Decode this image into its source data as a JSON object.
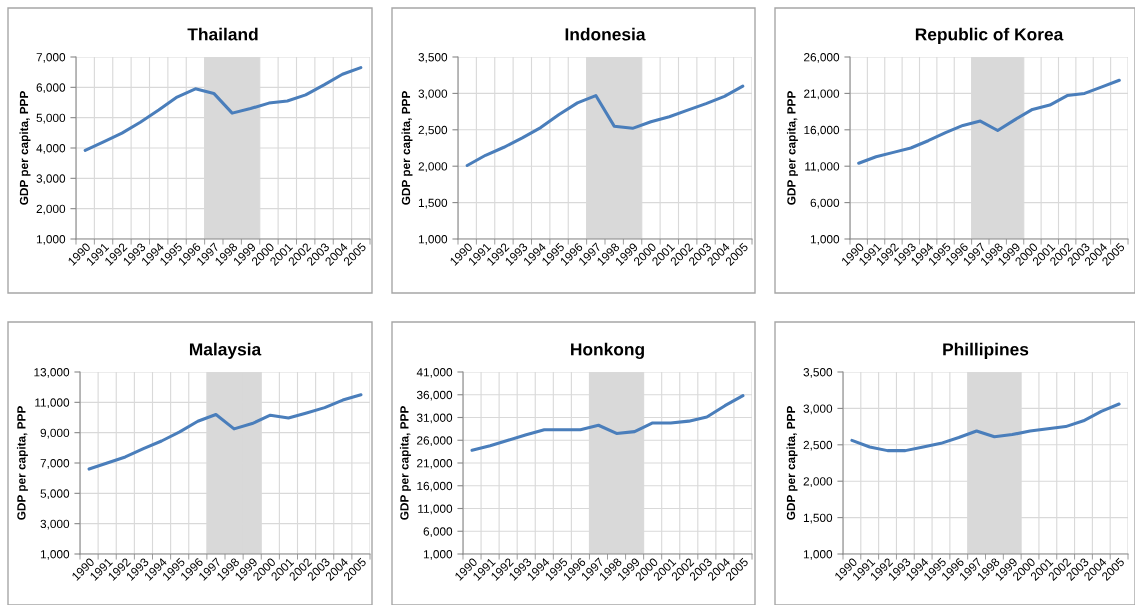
{
  "chart_data": [
    {
      "type": "line",
      "title": "Thailand",
      "ylabel": "GDP per capita, PPP",
      "categories": [
        "1990",
        "1991",
        "1992",
        "1993",
        "1994",
        "1995",
        "1996",
        "1997",
        "1998",
        "1999",
        "2000",
        "2001",
        "2002",
        "2003",
        "2004",
        "2005"
      ],
      "series": [
        {
          "color": "#4a7ebb",
          "values": [
            3920,
            4200,
            4490,
            4850,
            5250,
            5680,
            5950,
            5800,
            5150,
            5300,
            5480,
            5550,
            5750,
            6080,
            6430,
            6650
          ]
        }
      ],
      "ylim": [
        1000,
        7000
      ],
      "yticks": [
        {
          "value": 1000,
          "label": "1,000"
        },
        {
          "value": 2000,
          "label": "2,000"
        },
        {
          "value": 3000,
          "label": "3,000"
        },
        {
          "value": 4000,
          "label": "4,000"
        },
        {
          "value": 5000,
          "label": "5,000"
        },
        {
          "value": 6000,
          "label": "6,000"
        },
        {
          "value": 7000,
          "label": "7,000"
        }
      ],
      "bands": [
        {
          "axis": "x",
          "from": "1997",
          "to": "1999",
          "color": "#d9d9d9"
        }
      ],
      "grid": true,
      "legend": false
    },
    {
      "type": "line",
      "title": "Indonesia",
      "ylabel": "GDP per capita, PPP",
      "categories": [
        "1990",
        "1991",
        "1992",
        "1993",
        "1994",
        "1995",
        "1996",
        "1997",
        "1998",
        "1999",
        "2000",
        "2001",
        "2002",
        "2003",
        "2004",
        "2005"
      ],
      "series": [
        {
          "color": "#4a7ebb",
          "values": [
            2010,
            2150,
            2260,
            2390,
            2530,
            2710,
            2870,
            2970,
            2550,
            2520,
            2610,
            2680,
            2770,
            2860,
            2960,
            3100
          ]
        }
      ],
      "ylim": [
        1000,
        3500
      ],
      "yticks": [
        {
          "value": 1000,
          "label": "1,000"
        },
        {
          "value": 1500,
          "label": "1,500"
        },
        {
          "value": 2000,
          "label": "2,000"
        },
        {
          "value": 2500,
          "label": "2,500"
        },
        {
          "value": 3000,
          "label": "3,000"
        },
        {
          "value": 3500,
          "label": "3,500"
        }
      ],
      "bands": [
        {
          "axis": "x",
          "from": "1997",
          "to": "1999",
          "color": "#d9d9d9"
        }
      ],
      "grid": true,
      "legend": false
    },
    {
      "type": "line",
      "title": "Republic of Korea",
      "ylabel": "GDP per capita, PPP",
      "categories": [
        "1990",
        "1991",
        "1992",
        "1993",
        "1994",
        "1995",
        "1996",
        "1997",
        "1998",
        "1999",
        "2000",
        "2001",
        "2002",
        "2003",
        "2004",
        "2005"
      ],
      "series": [
        {
          "color": "#4a7ebb",
          "values": [
            11400,
            12300,
            12900,
            13500,
            14500,
            15600,
            16600,
            17200,
            15900,
            17400,
            18800,
            19400,
            20700,
            21000,
            21900,
            22800
          ]
        }
      ],
      "ylim": [
        1000,
        26000
      ],
      "yticks": [
        {
          "value": 1000,
          "label": "1,000"
        },
        {
          "value": 6000,
          "label": "6,000"
        },
        {
          "value": 11000,
          "label": "11,000"
        },
        {
          "value": 16000,
          "label": "16,000"
        },
        {
          "value": 21000,
          "label": "21,000"
        },
        {
          "value": 26000,
          "label": "26,000"
        }
      ],
      "bands": [
        {
          "axis": "x",
          "from": "1997",
          "to": "1999",
          "color": "#d9d9d9"
        }
      ],
      "grid": true,
      "legend": false
    },
    {
      "type": "line",
      "title": "Malaysia",
      "ylabel": "GDP per capita, PPP",
      "categories": [
        "1990",
        "1991",
        "1992",
        "1993",
        "1994",
        "1995",
        "1996",
        "1997",
        "1998",
        "1999",
        "2000",
        "2001",
        "2002",
        "2003",
        "2004",
        "2005"
      ],
      "series": [
        {
          "color": "#4a7ebb",
          "values": [
            6600,
            7000,
            7400,
            7950,
            8450,
            9050,
            9750,
            10200,
            9250,
            9600,
            10150,
            9970,
            10300,
            10650,
            11150,
            11500
          ]
        }
      ],
      "ylim": [
        1000,
        13000
      ],
      "yticks": [
        {
          "value": 1000,
          "label": "1,000"
        },
        {
          "value": 3000,
          "label": "3,000"
        },
        {
          "value": 5000,
          "label": "5,000"
        },
        {
          "value": 7000,
          "label": "7,000"
        },
        {
          "value": 9000,
          "label": "9,000"
        },
        {
          "value": 11000,
          "label": "11,000"
        },
        {
          "value": 13000,
          "label": "13,000"
        }
      ],
      "bands": [
        {
          "axis": "x",
          "from": "1997",
          "to": "1999",
          "color": "#d9d9d9"
        }
      ],
      "grid": true,
      "legend": false
    },
    {
      "type": "line",
      "title": "Honkong",
      "ylabel": "GDP per capita, PPP",
      "categories": [
        "1990",
        "1991",
        "1992",
        "1993",
        "1994",
        "1995",
        "1996",
        "1997",
        "1998",
        "1999",
        "2000",
        "2001",
        "2002",
        "2003",
        "2004",
        "2005"
      ],
      "series": [
        {
          "color": "#4a7ebb",
          "values": [
            23800,
            24800,
            26000,
            27200,
            28300,
            28300,
            28300,
            29300,
            27500,
            27900,
            29800,
            29800,
            30200,
            31100,
            33600,
            35800
          ]
        }
      ],
      "ylim": [
        1000,
        41000
      ],
      "yticks": [
        {
          "value": 1000,
          "label": "1,000"
        },
        {
          "value": 6000,
          "label": "6,000"
        },
        {
          "value": 11000,
          "label": "11,000"
        },
        {
          "value": 16000,
          "label": "16,000"
        },
        {
          "value": 21000,
          "label": "21,000"
        },
        {
          "value": 26000,
          "label": "26,000"
        },
        {
          "value": 31000,
          "label": "31,000"
        },
        {
          "value": 36000,
          "label": "36,000"
        },
        {
          "value": 41000,
          "label": "41,000"
        }
      ],
      "bands": [
        {
          "axis": "x",
          "from": "1997",
          "to": "1999",
          "color": "#d9d9d9"
        }
      ],
      "grid": true,
      "legend": false
    },
    {
      "type": "line",
      "title": "Phillipines",
      "ylabel": "GDP per capita, PPP",
      "categories": [
        "1990",
        "1991",
        "1992",
        "1993",
        "1994",
        "1995",
        "1996",
        "1997",
        "1998",
        "1999",
        "2000",
        "2001",
        "2002",
        "2003",
        "2004",
        "2005"
      ],
      "series": [
        {
          "color": "#4a7ebb",
          "values": [
            2560,
            2470,
            2420,
            2420,
            2470,
            2520,
            2600,
            2690,
            2610,
            2640,
            2690,
            2720,
            2750,
            2830,
            2960,
            3060
          ]
        }
      ],
      "ylim": [
        1000,
        3500
      ],
      "yticks": [
        {
          "value": 1000,
          "label": "1,000"
        },
        {
          "value": 1500,
          "label": "1,500"
        },
        {
          "value": 2000,
          "label": "2,000"
        },
        {
          "value": 2500,
          "label": "2,500"
        },
        {
          "value": 3000,
          "label": "3,000"
        },
        {
          "value": 3500,
          "label": "3,500"
        }
      ],
      "bands": [
        {
          "axis": "x",
          "from": "1997",
          "to": "1999",
          "color": "#d9d9d9"
        }
      ],
      "grid": true,
      "legend": false
    }
  ]
}
